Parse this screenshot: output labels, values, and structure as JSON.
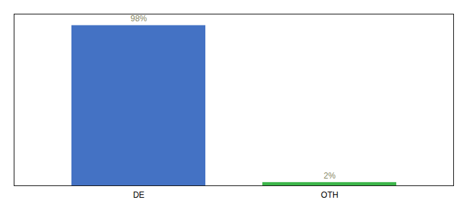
{
  "chart_data": {
    "type": "bar",
    "categories": [
      "DE",
      "OTH"
    ],
    "values": [
      98,
      2
    ],
    "value_labels": [
      "98%",
      "2%"
    ],
    "colors": [
      "#4472C4",
      "#3CB54A"
    ],
    "ylim": [
      0,
      105
    ],
    "data_labels": true,
    "tick_labels": "x",
    "grid": false
  }
}
